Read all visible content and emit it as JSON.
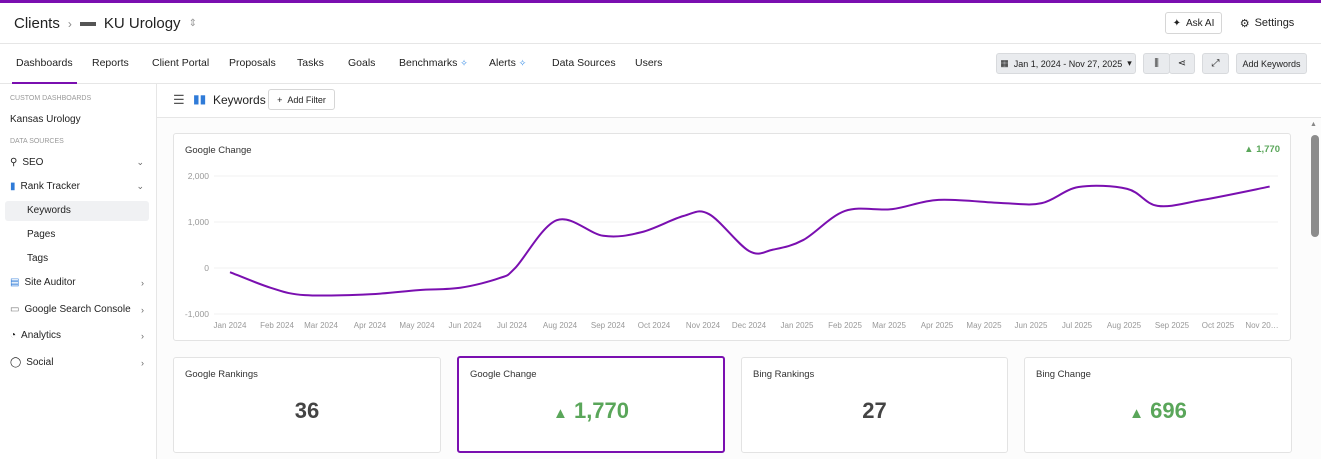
{
  "header": {
    "breadcrumb_root": "Clients",
    "client_name": "KU Urology",
    "ask_ai": "Ask AI",
    "settings": "Settings"
  },
  "nav": {
    "tabs": [
      {
        "label": "Dashboards",
        "active": true
      },
      {
        "label": "Reports"
      },
      {
        "label": "Client Portal"
      },
      {
        "label": "Proposals"
      },
      {
        "label": "Tasks"
      },
      {
        "label": "Goals"
      },
      {
        "label": "Benchmarks",
        "new": true
      },
      {
        "label": "Alerts",
        "new": true
      },
      {
        "label": "Data Sources"
      },
      {
        "label": "Users"
      }
    ],
    "date_range": "Jan 1, 2024 - Nov 27, 2025",
    "add_keywords": "Add Keywords"
  },
  "sidebar": {
    "custom_heading": "CUSTOM DASHBOARDS",
    "custom_item": "Kansas Urology",
    "sources_heading": "DATA SOURCES",
    "items": [
      {
        "label": "SEO",
        "icon": "search-icon"
      },
      {
        "label": "Rank Tracker",
        "icon": "bar-chart-icon"
      },
      {
        "label": "Site Auditor",
        "icon": "auditor-icon"
      },
      {
        "label": "Google Search Console",
        "icon": "console-icon"
      },
      {
        "label": "Analytics",
        "icon": "pie-icon"
      },
      {
        "label": "Social",
        "icon": "chat-icon"
      }
    ],
    "rank_sub": [
      "Keywords",
      "Pages",
      "Tags"
    ]
  },
  "toolbar": {
    "title": "Keywords",
    "add_filter": "Add Filter"
  },
  "accent": "#7a0fb0",
  "positive": "#5aa65a",
  "chart_data": {
    "type": "line",
    "title": "Google Change",
    "summary": "1,770",
    "ylim": [
      -1000,
      2000
    ],
    "yticks": [
      "2,000",
      "1,000",
      "0",
      "-1,000"
    ],
    "grid": true,
    "xticks": [
      "Jan 2024",
      "Feb 2024",
      "Mar 2024",
      "Apr 2024",
      "May 2024",
      "Jun 2024",
      "Jul 2024",
      "Aug 2024",
      "Sep 2024",
      "Oct 2024",
      "Nov 2024",
      "Dec 2024",
      "Jan 2025",
      "Feb 2025",
      "Mar 2025",
      "Apr 2025",
      "May 2025",
      "Jun 2025",
      "Jul 2025",
      "Aug 2025",
      "Sep 2025",
      "Oct 2025",
      "Nov 20…"
    ],
    "series": [
      {
        "color": "#7a0fb0",
        "points": [
          [
            "2024-01-01",
            -90
          ],
          [
            "2024-01-27",
            -430
          ],
          [
            "2024-02-20",
            -590
          ],
          [
            "2024-03-31",
            -570
          ],
          [
            "2024-05-02",
            -480
          ],
          [
            "2024-05-28",
            -430
          ],
          [
            "2024-06-23",
            -220
          ],
          [
            "2024-07-03",
            0
          ],
          [
            "2024-07-29",
            1040
          ],
          [
            "2024-08-28",
            700
          ],
          [
            "2024-09-23",
            780
          ],
          [
            "2024-10-19",
            1130
          ],
          [
            "2024-11-05",
            1170
          ],
          [
            "2024-12-01",
            370
          ],
          [
            "2024-12-16",
            400
          ],
          [
            "2025-01-05",
            610
          ],
          [
            "2025-02-01",
            1240
          ],
          [
            "2025-03-03",
            1280
          ],
          [
            "2025-04-02",
            1480
          ],
          [
            "2025-05-13",
            1410
          ],
          [
            "2025-06-08",
            1410
          ],
          [
            "2025-07-02",
            1760
          ],
          [
            "2025-08-03",
            1720
          ],
          [
            "2025-08-22",
            1350
          ],
          [
            "2025-09-21",
            1480
          ],
          [
            "2025-11-06",
            1770
          ]
        ]
      }
    ]
  },
  "cards": [
    {
      "title": "Google Rankings",
      "value": "36"
    },
    {
      "title": "Google Change",
      "value": "1,770",
      "up": true,
      "selected": true
    },
    {
      "title": "Bing Rankings",
      "value": "27"
    },
    {
      "title": "Bing Change",
      "value": "696",
      "up": true
    }
  ]
}
